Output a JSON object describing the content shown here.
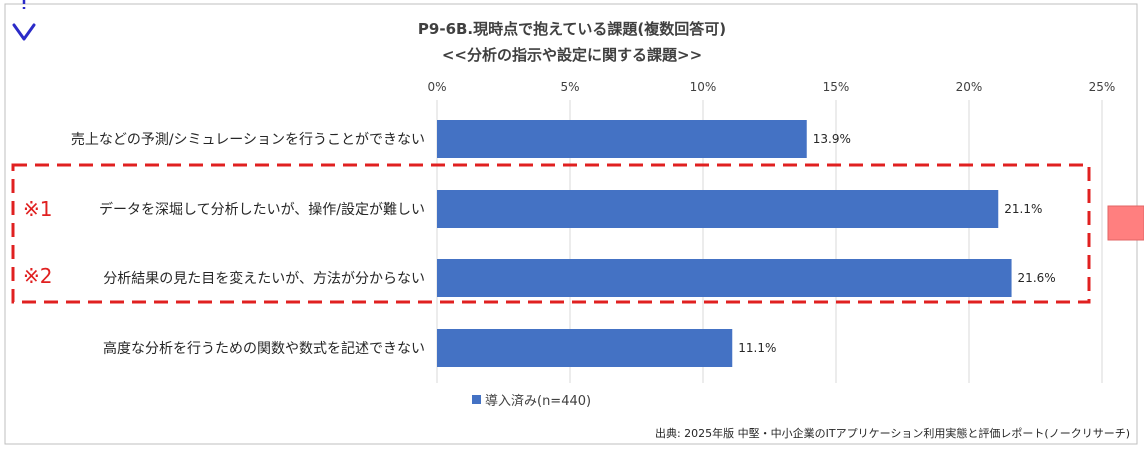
{
  "chart_data": {
    "type": "bar",
    "orientation": "horizontal",
    "title": "P9-6B.現時点で抱えている課題(複数回答可)",
    "subtitle": "<<分析の指示や設定に関する課題>>",
    "categories": [
      "売上などの予測/シミュレーションを行うことができない",
      "データを深堀して分析したいが、操作/設定が難しい",
      "分析結果の見た目を変えたいが、方法が分からない",
      "高度な分析を行うための関数や数式を記述できない"
    ],
    "series": [
      {
        "name": "導入済み(n=440)",
        "values": [
          13.9,
          21.1,
          21.6,
          11.1
        ],
        "color": "#4472C4"
      }
    ],
    "data_labels": [
      "13.9%",
      "21.1%",
      "21.6%",
      "11.1%"
    ],
    "xlim": [
      0,
      25
    ],
    "xticks": [
      0,
      5,
      10,
      15,
      20,
      25
    ],
    "xtick_labels": [
      "0%",
      "5%",
      "10%",
      "15%",
      "20%",
      "25%"
    ],
    "grid": true,
    "legend_position": "bottom",
    "annotations": {
      "highlight_markers": [
        "※1",
        "※2"
      ],
      "highlight_color": "#E02020"
    },
    "source_note": "出典: 2025年版 中堅・中小企業のITアプリケーション利用実態と評価レポート(ノークリサーチ)"
  },
  "colors": {
    "bar": "#4472C4",
    "grid": "#D9D9D9",
    "highlight": "#E02020",
    "arrow": "#2B2BC8",
    "side_marker": "#FF7F7F"
  }
}
